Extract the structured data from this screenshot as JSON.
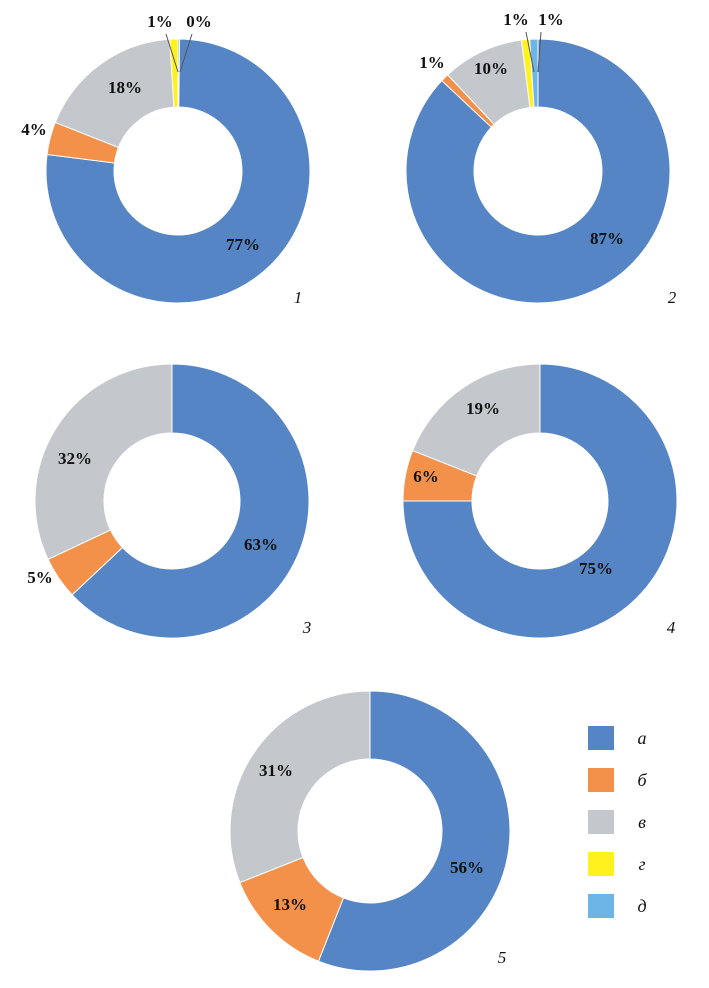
{
  "colors": {
    "a": "#5585C5",
    "b": "#F3914B",
    "v": "#C4C8CC",
    "g": "#FFF11E",
    "d": "#6CB5E6"
  },
  "legend": [
    {
      "key": "a",
      "label": "а"
    },
    {
      "key": "b",
      "label": "б"
    },
    {
      "key": "v",
      "label": "в"
    },
    {
      "key": "g",
      "label": "г"
    },
    {
      "key": "d",
      "label": "д"
    }
  ],
  "chart_data": [
    {
      "type": "pie",
      "number": "1",
      "categories": [
        "а",
        "б",
        "в",
        "г",
        "д"
      ],
      "values": [
        77,
        4,
        18,
        1,
        0
      ],
      "labels": [
        "77%",
        "4%",
        "18%",
        "1%",
        "0%"
      ]
    },
    {
      "type": "pie",
      "number": "2",
      "categories": [
        "а",
        "б",
        "в",
        "г",
        "д"
      ],
      "values": [
        87,
        1,
        10,
        1,
        1
      ],
      "labels": [
        "87%",
        "1%",
        "10%",
        "1%",
        "1%"
      ]
    },
    {
      "type": "pie",
      "number": "3",
      "categories": [
        "а",
        "б",
        "в"
      ],
      "values": [
        63,
        5,
        32
      ],
      "labels": [
        "63%",
        "5%",
        "32%"
      ]
    },
    {
      "type": "pie",
      "number": "4",
      "categories": [
        "а",
        "б",
        "в"
      ],
      "values": [
        75,
        6,
        19
      ],
      "labels": [
        "75%",
        "6%",
        "19%"
      ]
    },
    {
      "type": "pie",
      "number": "5",
      "categories": [
        "а",
        "б",
        "в"
      ],
      "values": [
        56,
        13,
        31
      ],
      "labels": [
        "56%",
        "13%",
        "31%"
      ]
    }
  ]
}
